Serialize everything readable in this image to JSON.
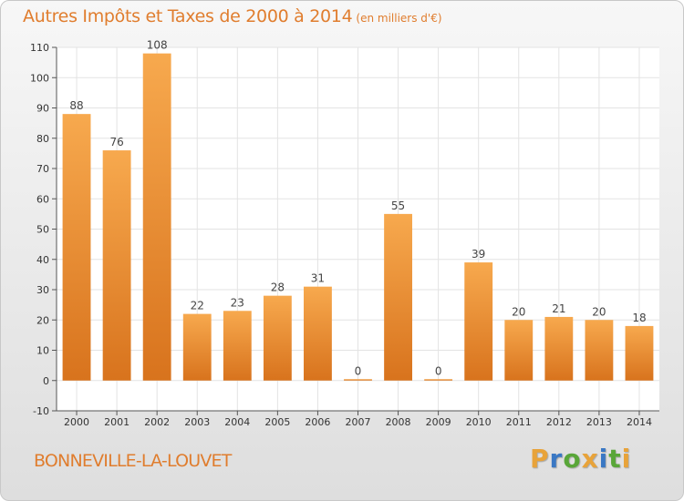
{
  "header": {
    "title": "Autres Impôts et Taxes de 2000 à 2014",
    "subtitle": "(en milliers d'€)"
  },
  "footer": {
    "town": "BONNEVILLE-LA-LOUVET",
    "logo_letters": [
      "P",
      "r",
      "o",
      "x",
      "i",
      "t",
      "i"
    ],
    "logo_colors": [
      "#e8a33a",
      "#3a78c4",
      "#59a639",
      "#e8a33a",
      "#3a78c4",
      "#59a639",
      "#e8a33a"
    ]
  },
  "chart_data": {
    "type": "bar",
    "title": "Autres Impôts et Taxes de 2000 à 2014",
    "subtitle": "(en milliers d'€)",
    "categories": [
      "2000",
      "2001",
      "2002",
      "2003",
      "2004",
      "2005",
      "2006",
      "2007",
      "2008",
      "2009",
      "2010",
      "2011",
      "2012",
      "2013",
      "2014"
    ],
    "values": [
      88,
      76,
      108,
      22,
      23,
      28,
      31,
      0,
      55,
      0,
      39,
      20,
      21,
      20,
      18
    ],
    "value_labels": [
      "88",
      "76",
      "108",
      "22",
      "23",
      "28",
      "31",
      "0",
      "55",
      "0",
      "39",
      "20",
      "21",
      "20",
      "18"
    ],
    "yticks": [
      "-10",
      "0",
      "10",
      "20",
      "30",
      "40",
      "50",
      "60",
      "70",
      "80",
      "90",
      "100",
      "110"
    ],
    "ylim": [
      -10,
      110
    ],
    "grid": true,
    "bar_color_top": "#f7a94e",
    "bar_color_bottom": "#d8731d"
  }
}
